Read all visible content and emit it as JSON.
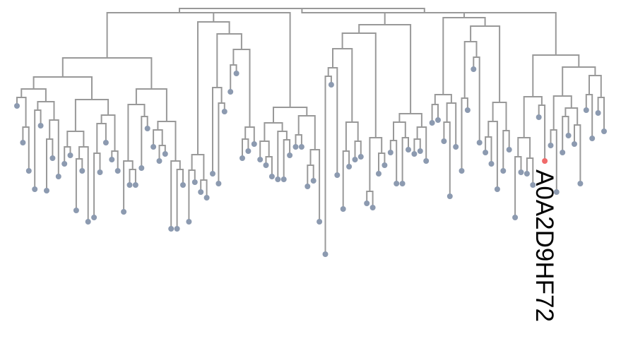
{
  "tree": {
    "branch_color": "#999999",
    "leaf_color": "#8c9ab0",
    "highlight_color": "#f06a6a",
    "highlight_label": "A0A2D9HF72"
  }
}
